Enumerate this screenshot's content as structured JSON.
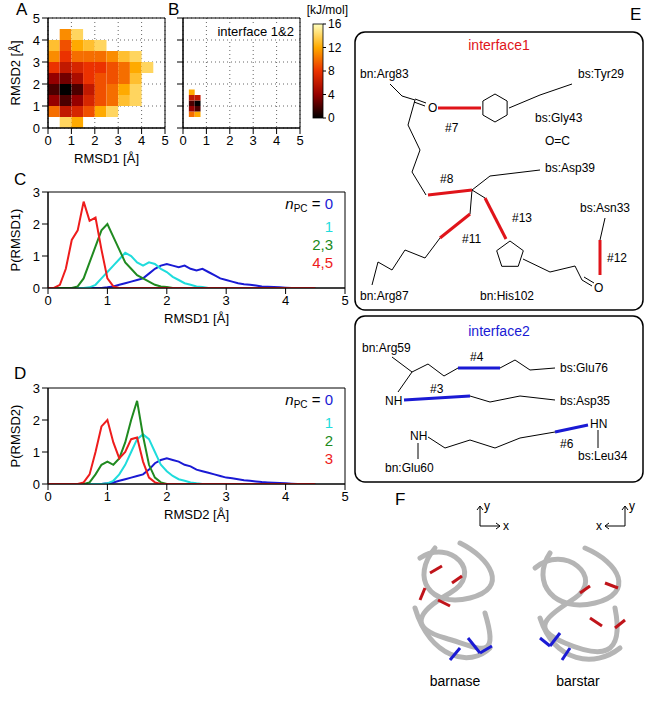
{
  "chart_data": [
    {
      "panel": "A",
      "type": "heatmap",
      "xlabel": "RMSD1 [Å]",
      "ylabel": "RMSD2 [Å]",
      "xlim": [
        0,
        5
      ],
      "ylim": [
        0,
        5
      ],
      "xticks": [
        0,
        1,
        2,
        3,
        4,
        5
      ],
      "yticks": [
        0,
        1,
        2,
        3,
        4,
        5
      ],
      "grid": true,
      "x_edges": [
        0,
        0.5,
        1,
        1.5,
        2,
        2.5,
        3,
        3.5,
        4,
        4.5,
        5
      ],
      "y_edges": [
        0,
        0.5,
        1,
        1.5,
        2,
        2.5,
        3,
        3.5,
        4,
        4.5,
        5
      ],
      "z": [
        [
          null,
          14,
          12,
          null,
          null,
          null,
          null,
          null,
          null,
          null
        ],
        [
          10,
          6,
          7,
          9,
          12,
          14,
          null,
          null,
          null,
          null
        ],
        [
          4,
          2,
          4,
          7,
          9,
          10,
          13,
          14,
          null,
          null
        ],
        [
          2,
          0,
          2,
          6,
          9,
          10,
          12,
          14,
          null,
          null
        ],
        [
          4,
          3,
          5,
          8,
          9,
          9,
          10,
          13,
          null,
          null
        ],
        [
          8,
          6,
          7,
          8,
          8,
          9,
          10,
          12,
          14,
          null
        ],
        [
          11,
          8,
          10,
          10,
          10,
          11,
          13,
          14,
          null,
          null
        ],
        [
          13,
          9,
          12,
          13,
          14,
          null,
          null,
          null,
          null,
          null
        ],
        [
          null,
          11,
          14,
          null,
          null,
          null,
          null,
          null,
          null,
          null
        ],
        [
          null,
          null,
          null,
          null,
          null,
          null,
          null,
          null,
          null,
          null
        ]
      ]
    },
    {
      "panel": "B",
      "type": "heatmap",
      "annotation": "interface 1&2",
      "xlim": [
        0,
        5
      ],
      "ylim": [
        0,
        5
      ],
      "xticks": [
        0,
        1,
        2,
        3,
        4,
        5
      ],
      "yticks": [
        0,
        1,
        2,
        3,
        4,
        5
      ],
      "tick_labels": "x",
      "grid": true,
      "x_edges": [
        0.25,
        0.5,
        0.75
      ],
      "y_edges": [
        0.5,
        0.75,
        1,
        1.25,
        1.5,
        1.75
      ],
      "z": [
        [
          10,
          12
        ],
        [
          4,
          2
        ],
        [
          2,
          0
        ],
        [
          6,
          6
        ],
        [
          12,
          null
        ]
      ]
    },
    {
      "panel": "C",
      "type": "line",
      "xlabel": "RMSD1 [Å]",
      "ylabel": "P(RMSD1)",
      "xlim": [
        0,
        5
      ],
      "ylim": [
        0,
        3
      ],
      "xticks": [
        0,
        1,
        2,
        3,
        4,
        5
      ],
      "yticks": [
        0,
        1,
        2,
        3
      ],
      "grid": false,
      "legend": "upper right",
      "legend_title": {
        "text": "n",
        "subscript": "PC",
        "suffix": "="
      },
      "x": [
        0,
        0.1,
        0.2,
        0.3,
        0.4,
        0.5,
        0.6,
        0.7,
        0.8,
        0.9,
        1,
        1.1,
        1.2,
        1.3,
        1.4,
        1.5,
        1.6,
        1.7,
        1.8,
        1.9,
        2,
        2.1,
        2.2,
        2.3,
        2.4,
        2.5,
        2.6,
        2.7,
        2.8,
        2.9,
        3,
        3.1,
        3.2,
        3.3,
        3.4,
        3.5,
        3.6,
        3.7,
        3.8,
        3.9,
        4,
        4.1,
        4.2,
        4.3,
        4.4,
        4.5
      ],
      "series": [
        {
          "name": "0",
          "color": "#1a1ad4",
          "values": [
            0,
            0,
            0,
            0,
            0,
            0,
            0,
            0,
            0,
            0,
            0.02,
            0.05,
            0.1,
            0.15,
            0.2,
            0.25,
            0.3,
            0.45,
            0.6,
            0.7,
            0.75,
            0.7,
            0.65,
            0.7,
            0.6,
            0.55,
            0.6,
            0.5,
            0.4,
            0.3,
            0.25,
            0.2,
            0.15,
            0.12,
            0.1,
            0.08,
            0.05,
            0.04,
            0.03,
            0.02,
            0.01,
            0,
            0,
            0,
            0,
            0
          ]
        },
        {
          "name": "1",
          "color": "#1fdcdc",
          "values": [
            0,
            0,
            0,
            0,
            0,
            0,
            0,
            0.02,
            0.1,
            0.3,
            0.5,
            0.7,
            0.9,
            1.1,
            1,
            0.8,
            0.7,
            0.8,
            0.75,
            0.6,
            0.5,
            0.35,
            0.25,
            0.15,
            0.1,
            0.05,
            0.03,
            0,
            0,
            0,
            0,
            0,
            0,
            0,
            0,
            0,
            0,
            0,
            0,
            0,
            0,
            0,
            0,
            0,
            0,
            0
          ]
        },
        {
          "name": "2,3",
          "color": "#208a20",
          "values": [
            0,
            0,
            0,
            0,
            0,
            0.05,
            0.3,
            0.8,
            1.3,
            1.8,
            2,
            1.6,
            1.2,
            0.8,
            0.6,
            0.4,
            0.3,
            0.2,
            0.1,
            0.05,
            0.03,
            0,
            0,
            0,
            0,
            0,
            0,
            0,
            0,
            0,
            0,
            0,
            0,
            0,
            0,
            0,
            0,
            0,
            0,
            0,
            0,
            0,
            0,
            0,
            0,
            0
          ]
        },
        {
          "name": "4,5",
          "color": "#ee1c1c",
          "values": [
            0,
            0,
            0.1,
            0.6,
            1.5,
            1.8,
            2.7,
            2.1,
            2.2,
            1.2,
            0.3,
            0.05,
            0,
            0,
            0,
            0,
            0,
            0,
            0,
            0,
            0,
            0,
            0,
            0,
            0,
            0,
            0,
            0,
            0,
            0,
            0,
            0,
            0,
            0,
            0,
            0,
            0,
            0,
            0,
            0,
            0,
            0,
            0,
            0,
            0,
            0
          ]
        }
      ]
    },
    {
      "panel": "D",
      "type": "line",
      "xlabel": "RMSD2 [Å]",
      "ylabel": "P(RMSD2)",
      "xlim": [
        0,
        5
      ],
      "ylim": [
        0,
        3
      ],
      "xticks": [
        0,
        1,
        2,
        3,
        4,
        5
      ],
      "yticks": [
        0,
        1,
        2,
        3
      ],
      "grid": false,
      "legend": "upper right",
      "legend_title": {
        "text": "n",
        "subscript": "PC",
        "suffix": "="
      },
      "x": [
        0,
        0.1,
        0.2,
        0.3,
        0.4,
        0.5,
        0.6,
        0.7,
        0.8,
        0.9,
        1,
        1.1,
        1.2,
        1.3,
        1.4,
        1.5,
        1.6,
        1.7,
        1.8,
        1.9,
        2,
        2.1,
        2.2,
        2.3,
        2.4,
        2.5,
        2.6,
        2.7,
        2.8,
        2.9,
        3,
        3.1,
        3.2,
        3.3,
        3.4,
        3.5,
        3.6,
        3.7,
        3.8,
        3.9,
        4,
        4.1,
        4.2,
        4.3,
        4.4,
        4.5
      ],
      "series": [
        {
          "name": "0",
          "color": "#1a1ad4",
          "values": [
            0,
            0,
            0,
            0,
            0,
            0,
            0,
            0,
            0,
            0,
            0.02,
            0.05,
            0.1,
            0.15,
            0.2,
            0.25,
            0.3,
            0.45,
            0.65,
            0.75,
            0.8,
            0.75,
            0.7,
            0.6,
            0.55,
            0.45,
            0.4,
            0.35,
            0.3,
            0.25,
            0.2,
            0.18,
            0.15,
            0.12,
            0.1,
            0.08,
            0.06,
            0.05,
            0.04,
            0.03,
            0.02,
            0.01,
            0,
            0,
            0,
            0
          ]
        },
        {
          "name": "1",
          "color": "#1fdcdc",
          "values": [
            0,
            0,
            0,
            0,
            0,
            0,
            0,
            0,
            0,
            0,
            0.02,
            0.1,
            0.3,
            0.6,
            1,
            1.4,
            1.55,
            1.4,
            1,
            0.6,
            0.4,
            0.25,
            0.15,
            0.1,
            0.05,
            0.02,
            0,
            0,
            0,
            0,
            0,
            0,
            0,
            0,
            0,
            0,
            0,
            0,
            0,
            0,
            0,
            0,
            0,
            0,
            0,
            0
          ]
        },
        {
          "name": "2",
          "color": "#208a20",
          "values": [
            0,
            0,
            0,
            0,
            0,
            0,
            0,
            0.05,
            0.3,
            0.6,
            0.7,
            0.6,
            0.8,
            1.3,
            2,
            2.6,
            1.5,
            0.6,
            0.2,
            0.05,
            0,
            0,
            0,
            0,
            0,
            0,
            0,
            0,
            0,
            0,
            0,
            0,
            0,
            0,
            0,
            0,
            0,
            0,
            0,
            0,
            0,
            0,
            0,
            0,
            0,
            0
          ]
        },
        {
          "name": "3",
          "color": "#ee1c1c",
          "values": [
            0,
            0,
            0,
            0,
            0,
            0,
            0.05,
            0.3,
            1,
            1.8,
            2,
            1.3,
            0.8,
            1,
            1.4,
            1.45,
            0.7,
            0.2,
            0.05,
            0,
            0,
            0,
            0,
            0,
            0,
            0,
            0,
            0,
            0,
            0,
            0,
            0,
            0,
            0,
            0,
            0,
            0,
            0,
            0,
            0,
            0,
            0,
            0,
            0,
            0,
            0
          ]
        }
      ]
    }
  ],
  "colorbar": {
    "label": "[kJ/mol]",
    "range": [
      0,
      16
    ],
    "ticks": [
      0,
      4,
      8,
      12,
      16
    ]
  },
  "diagram": {
    "panel": "E",
    "interface1": {
      "title": "interface1",
      "color": "#e0141a",
      "labels": [
        "bn:Arg83",
        "bs:Tyr29",
        "O",
        "#7",
        "bs:Gly43",
        "O=C",
        "bs:Asp39",
        "#8",
        "#11",
        "#13",
        "bs:Asn33",
        "#12",
        "O",
        "bn:Arg87",
        "bn:His102"
      ]
    },
    "interface2": {
      "title": "interface2",
      "color": "#1a1ad4",
      "labels": [
        "bn:Arg59",
        "#4",
        "bs:Glu76",
        "NH",
        "#3",
        "bs:Asp35",
        "HN",
        "#6",
        "bs:Leu34",
        "NH",
        "bn:Glu60"
      ]
    }
  },
  "structures": {
    "panel": "F",
    "items": [
      {
        "name": "barnase",
        "axes": [
          "x",
          "y"
        ]
      },
      {
        "name": "barstar",
        "axes": [
          "x",
          "y"
        ]
      }
    ]
  }
}
